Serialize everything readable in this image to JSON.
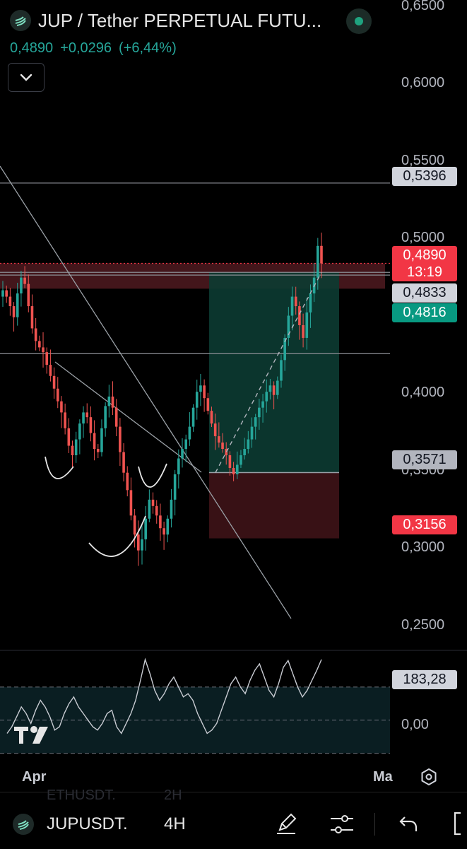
{
  "header": {
    "title": "JUP / Tether PERPETUAL FUTU...",
    "price": "0,4890",
    "change": "+0,0296",
    "change_pct": "(+6,44%)"
  },
  "price_axis": {
    "ticks": [
      "0,6500",
      "0,6000",
      "0,5500",
      "0,5000",
      "0,4000",
      "0,3500",
      "0,3000",
      "0,2500"
    ],
    "labels": {
      "line_0_5396": "0,5396",
      "last_price": "0,4890",
      "countdown": "13:19",
      "level_0_4833": "0,4833",
      "level_0_4816": "0,4816",
      "entry": "0,3571",
      "stop": "0,3156"
    },
    "colors": {
      "up": "#26a69a",
      "down": "#ef5350",
      "grey_tag": "#d1d4dc",
      "last_tag": "#f23645",
      "long_tag": "#089981"
    }
  },
  "oscillator": {
    "value": "183,28",
    "zero": "0,00"
  },
  "time_axis": {
    "labels": [
      "Apr",
      "Ma"
    ]
  },
  "toolbar": {
    "symbol": "JUPUSDT.",
    "interval": "4H",
    "ghost_symbol": "ETHUSDT.",
    "ghost_interval": "2H"
  },
  "chart_data": {
    "type": "candlestick",
    "title": "JUP / Tether PERPETUAL FUTU...",
    "y_range": [
      0.245,
      0.655
    ],
    "last_price": 0.489,
    "horizontal_lines": [
      0.5396,
      0.4833,
      0.4816,
      0.432
    ],
    "long_position": {
      "entry": 0.3571,
      "target": 0.4833,
      "stop": 0.3156
    },
    "resistance_zone": [
      0.473,
      0.489
    ],
    "pattern": "inverse head and shoulders",
    "close_path": [
      0.472,
      0.468,
      0.462,
      0.455,
      0.47,
      0.48,
      0.476,
      0.462,
      0.448,
      0.44,
      0.436,
      0.433,
      0.425,
      0.418,
      0.41,
      0.402,
      0.395,
      0.385,
      0.374,
      0.368,
      0.378,
      0.388,
      0.395,
      0.392,
      0.382,
      0.372,
      0.37,
      0.385,
      0.399,
      0.405,
      0.398,
      0.386,
      0.37,
      0.357,
      0.346,
      0.33,
      0.318,
      0.308,
      0.315,
      0.328,
      0.34,
      0.336,
      0.33,
      0.322,
      0.318,
      0.328,
      0.34,
      0.356,
      0.366,
      0.372,
      0.378,
      0.386,
      0.398,
      0.408,
      0.412,
      0.404,
      0.396,
      0.388,
      0.38,
      0.376,
      0.372,
      0.368,
      0.36,
      0.356,
      0.362,
      0.368,
      0.372,
      0.378,
      0.386,
      0.392,
      0.398,
      0.402,
      0.408,
      0.412,
      0.406,
      0.415,
      0.428,
      0.442,
      0.456,
      0.468,
      0.462,
      0.45,
      0.442,
      0.458,
      0.47,
      0.48,
      0.5,
      0.489
    ],
    "oscillator_path": [
      -40,
      -20,
      10,
      40,
      20,
      -10,
      30,
      60,
      40,
      10,
      -30,
      -20,
      20,
      50,
      70,
      40,
      20,
      0,
      -20,
      -30,
      -10,
      20,
      30,
      -20,
      -40,
      -10,
      20,
      60,
      120,
      183,
      140,
      90,
      60,
      80,
      110,
      130,
      100,
      70,
      80,
      60,
      20,
      -10,
      -40,
      -30,
      -10,
      30,
      70,
      110,
      130,
      100,
      80,
      120,
      150,
      170,
      130,
      90,
      70,
      110,
      160,
      180,
      140,
      100,
      70,
      90,
      120,
      150,
      183
    ],
    "oscillator_range": [
      -120,
      200
    ]
  }
}
